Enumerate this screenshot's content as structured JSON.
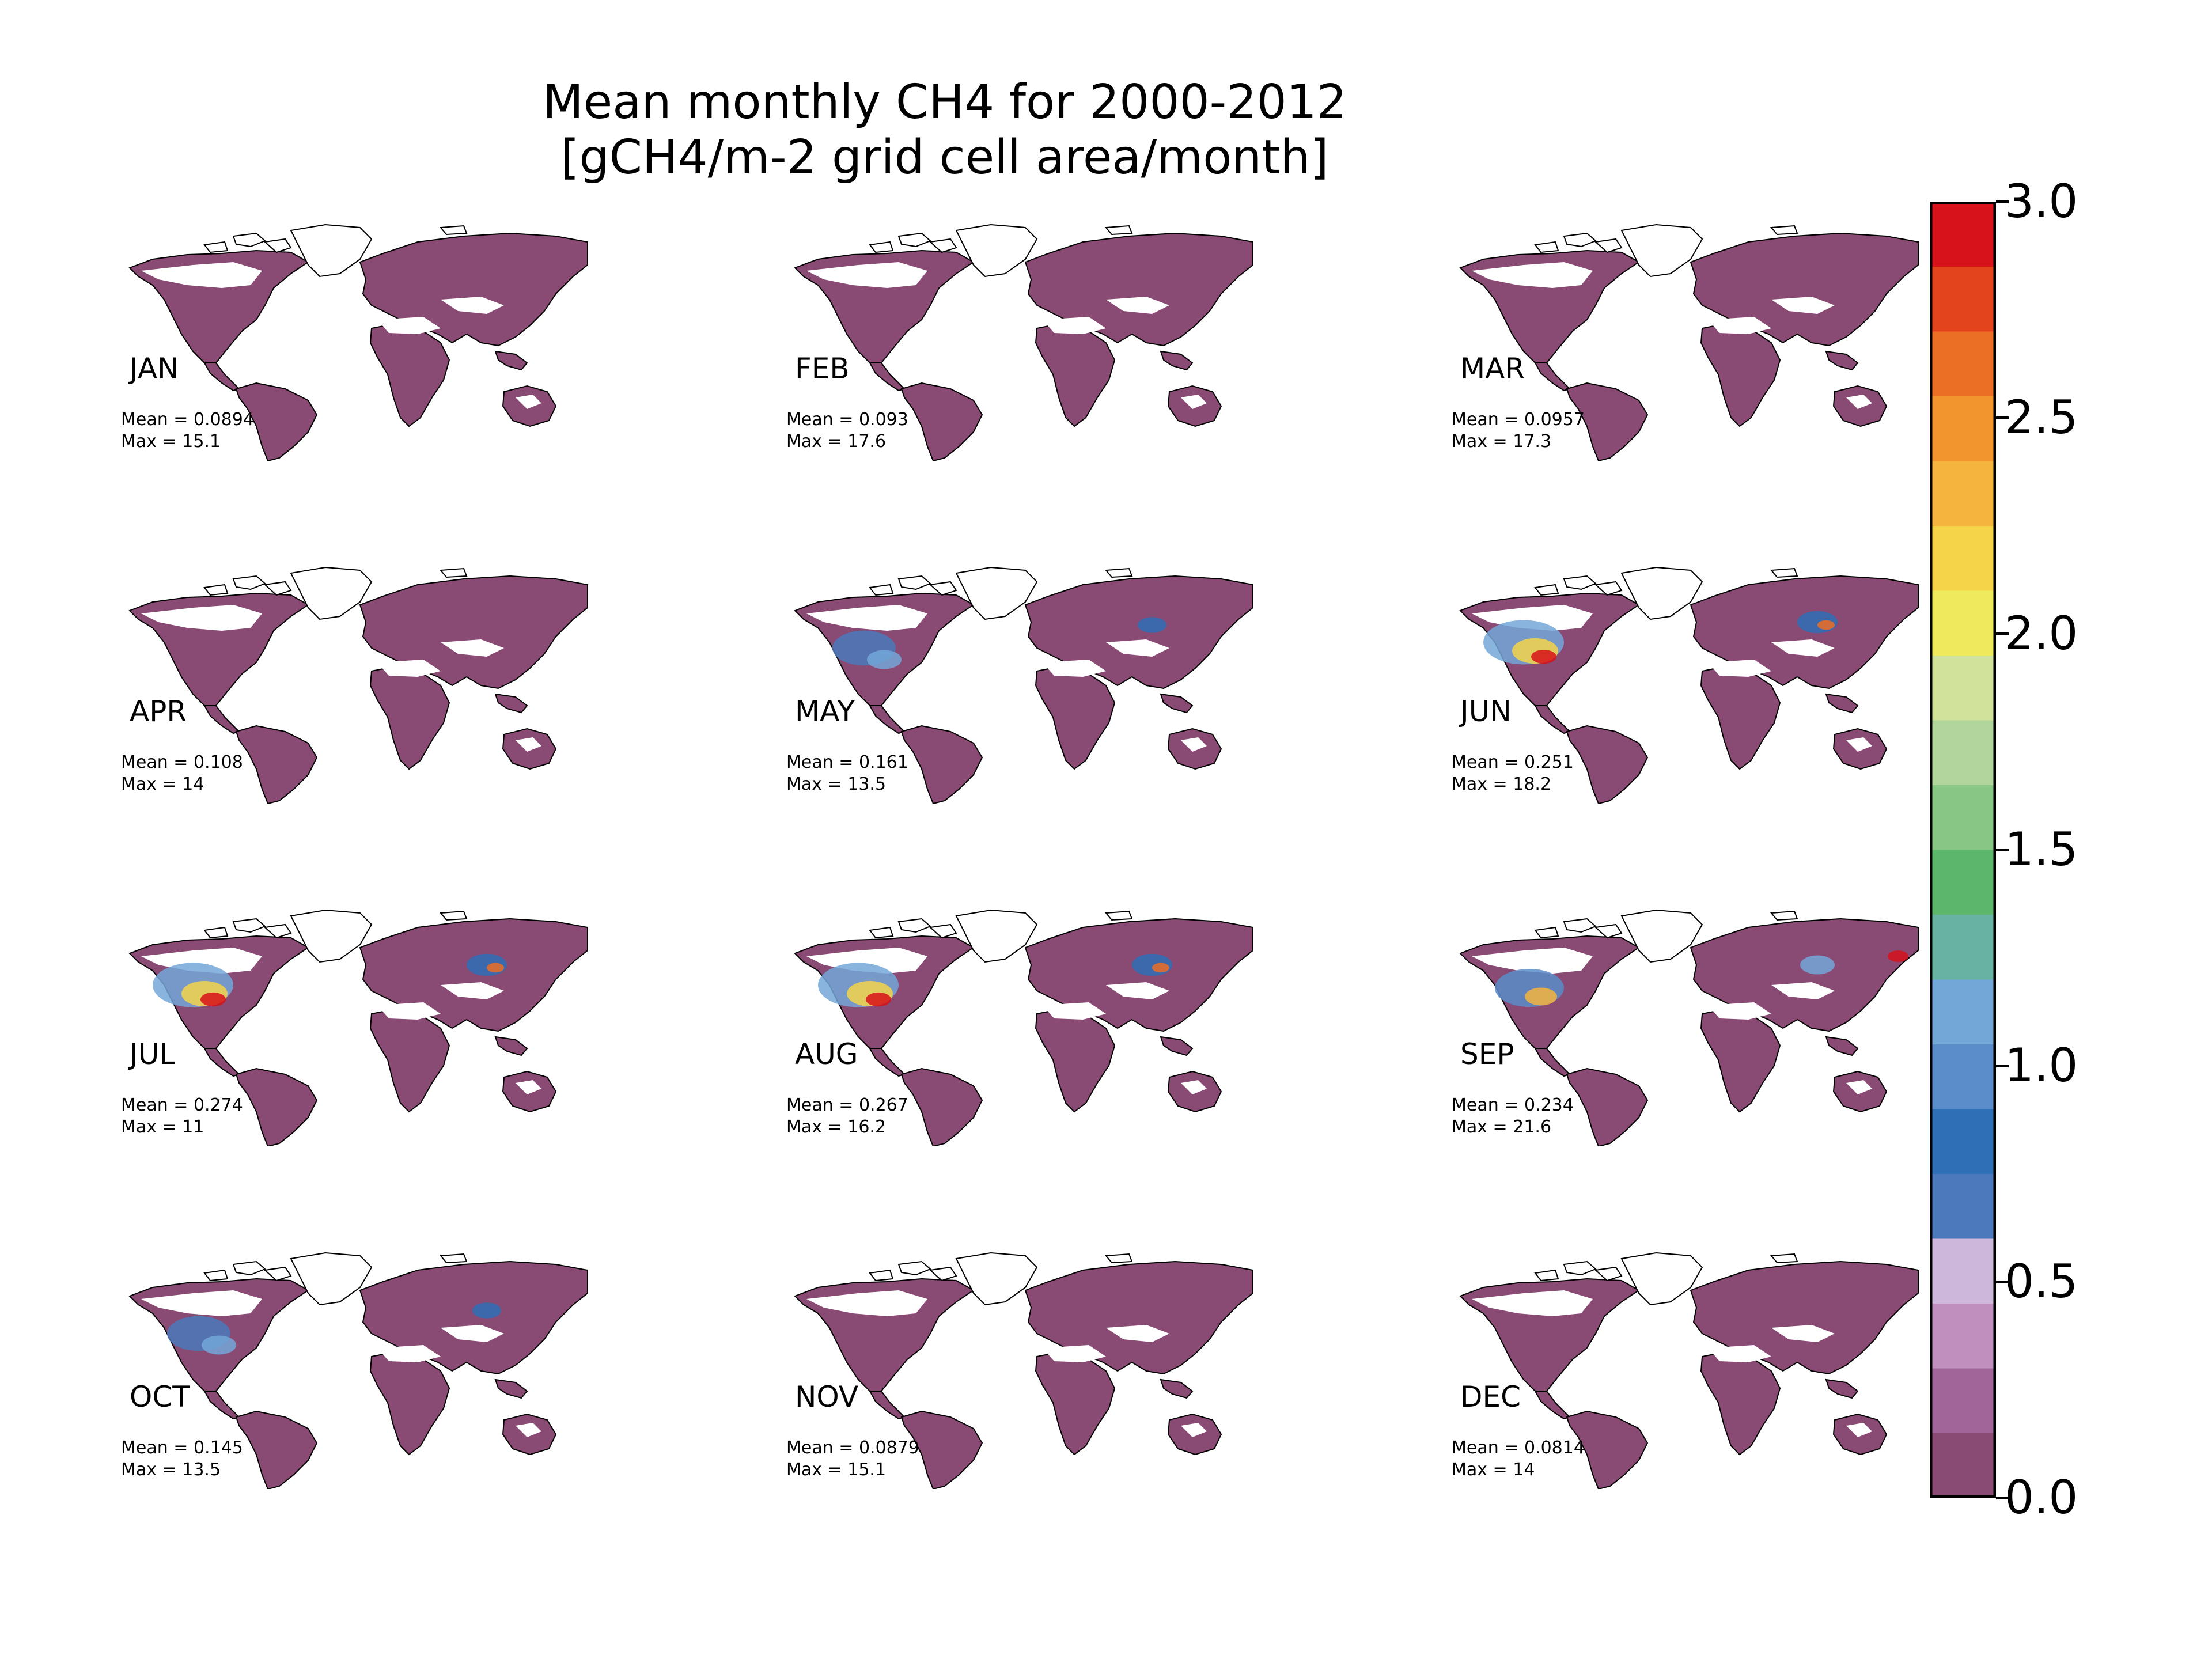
{
  "title": {
    "line1": "Mean monthly CH4 for 2000-2012",
    "line2": "[gCH4/m-2 grid cell area/month]"
  },
  "panels": [
    {
      "month": "JAN",
      "mean": "Mean = 0.0894",
      "max": "Max = 15.1",
      "highlight": "none"
    },
    {
      "month": "FEB",
      "mean": "Mean = 0.093",
      "max": "Max = 17.6",
      "highlight": "none"
    },
    {
      "month": "MAR",
      "mean": "Mean = 0.0957",
      "max": "Max = 17.3",
      "highlight": "none"
    },
    {
      "month": "APR",
      "mean": "Mean = 0.108",
      "max": "Max = 14",
      "highlight": "none"
    },
    {
      "month": "MAY",
      "mean": "Mean = 0.161",
      "max": "Max = 13.5",
      "highlight": "low"
    },
    {
      "month": "JUN",
      "mean": "Mean = 0.251",
      "max": "Max = 18.2",
      "highlight": "high"
    },
    {
      "month": "JUL",
      "mean": "Mean = 0.274",
      "max": "Max = 11",
      "highlight": "high"
    },
    {
      "month": "AUG",
      "mean": "Mean = 0.267",
      "max": "Max = 16.2",
      "highlight": "high"
    },
    {
      "month": "SEP",
      "mean": "Mean = 0.234",
      "max": "Max = 21.6",
      "highlight": "mid"
    },
    {
      "month": "OCT",
      "mean": "Mean = 0.145",
      "max": "Max = 13.5",
      "highlight": "low"
    },
    {
      "month": "NOV",
      "mean": "Mean = 0.0879",
      "max": "Max = 15.1",
      "highlight": "none"
    },
    {
      "month": "DEC",
      "mean": "Mean = 0.0814",
      "max": "Max = 14",
      "highlight": "none"
    }
  ],
  "colorbar": {
    "min": 0.0,
    "max": 3.0,
    "ticks": [
      "0.0",
      "0.5",
      "1.0",
      "1.5",
      "2.0",
      "2.5",
      "3.0"
    ],
    "tick_values": [
      0.0,
      0.5,
      1.0,
      1.5,
      2.0,
      2.5,
      3.0
    ],
    "colors": [
      "#894a74",
      "#a2659a",
      "#c08fbd",
      "#cdb8da",
      "#4b79bb",
      "#2f6fb6",
      "#5a8dc9",
      "#73a7d8",
      "#67b2a0",
      "#5db76a",
      "#88c683",
      "#b0d69b",
      "#d1e39b",
      "#eeea5d",
      "#f5d449",
      "#f5b43e",
      "#f2952f",
      "#ec6f26",
      "#e3441d",
      "#d7121a"
    ]
  },
  "map_colors": {
    "land": "#894a74",
    "outline": "#000000",
    "ice": "#ffffff"
  }
}
